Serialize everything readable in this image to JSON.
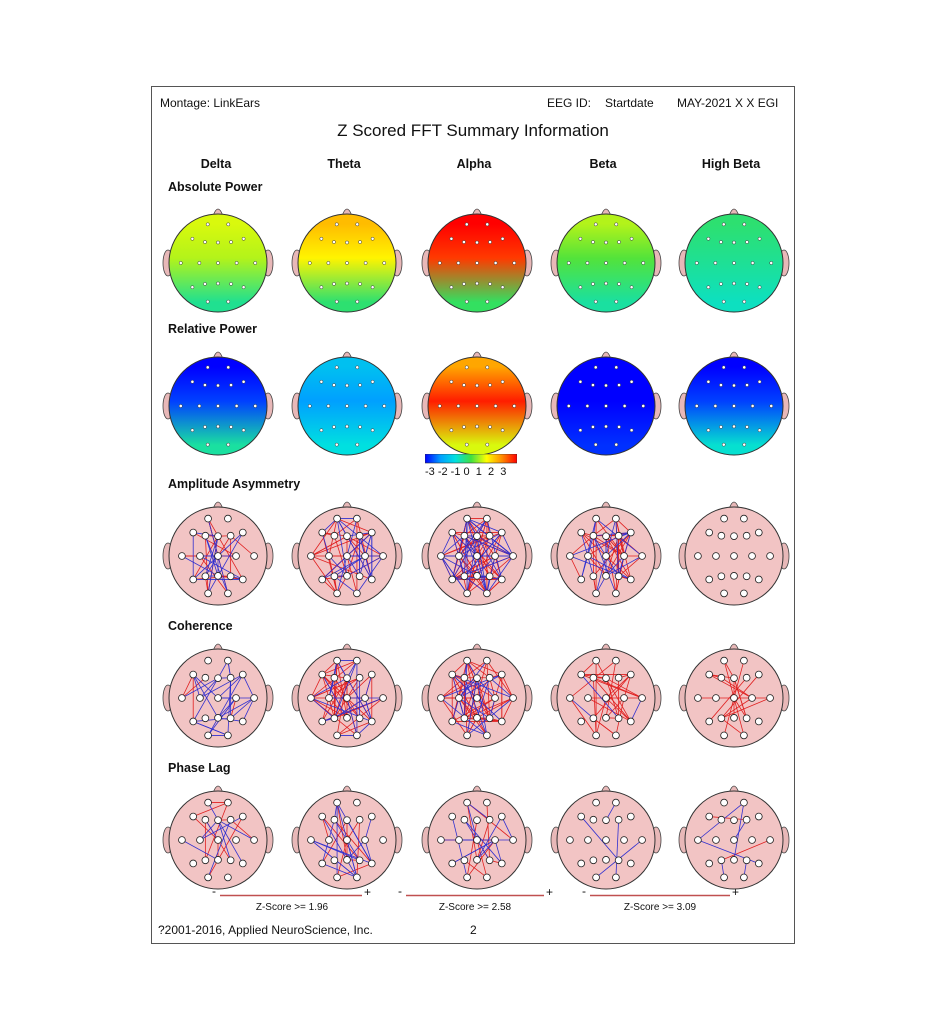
{
  "header": {
    "montage": "Montage:  LinkEars",
    "eeg_id_label": "EEG ID:",
    "startdate": "Startdate",
    "date": "MAY-2021 X X EGI"
  },
  "title": "Z Scored FFT Summary Information",
  "bands": [
    "Delta",
    "Theta",
    "Alpha",
    "Beta",
    "High Beta"
  ],
  "sections": {
    "absolute_power": "Absolute Power",
    "relative_power": "Relative Power",
    "amplitude_asymmetry": "Amplitude Asymmetry",
    "coherence": "Coherence",
    "phase_lag": "Phase Lag"
  },
  "colorbar": {
    "ticks": "-3 -2 -1 0  1  2  3",
    "colors": [
      "#0000ff",
      "#00a0ff",
      "#00e0e0",
      "#40e040",
      "#ffff00",
      "#ff9000",
      "#ff0000"
    ]
  },
  "zscore": {
    "minus": "-",
    "plus": "+",
    "thresholds": [
      "Z-Score >= 1.96",
      "Z-Score >= 2.58",
      "Z-Score >= 3.09"
    ]
  },
  "footer": {
    "copyright": "?2001-2016, Applied NeuroScience, Inc.",
    "page_number": "2"
  },
  "maps": {
    "absolute_power": [
      {
        "band": "Delta",
        "front": 0.8,
        "middle": 0.6,
        "back": -0.5
      },
      {
        "band": "Theta",
        "front": 1.6,
        "middle": 1.1,
        "back": -0.3
      },
      {
        "band": "Alpha",
        "front": 3.0,
        "middle": 2.6,
        "back": -0.2
      },
      {
        "band": "Beta",
        "front": 0.6,
        "middle": 0.1,
        "back": -0.6
      },
      {
        "band": "High Beta",
        "front": -0.3,
        "middle": -0.5,
        "back": -0.8
      }
    ],
    "relative_power": [
      {
        "band": "Delta",
        "front": -3.0,
        "middle": -2.6,
        "back": -0.6
      },
      {
        "band": "Theta",
        "front": -1.5,
        "middle": -2.0,
        "back": -1.0
      },
      {
        "band": "Alpha",
        "front": 1.8,
        "middle": 2.8,
        "back": 0.8
      },
      {
        "band": "Beta",
        "front": -3.0,
        "middle": -3.0,
        "back": -2.7
      },
      {
        "band": "High Beta",
        "front": -3.0,
        "middle": -2.6,
        "back": -0.9
      }
    ]
  },
  "connectivity": {
    "amplitude_asymmetry": [
      {
        "band": "Delta",
        "red": 24,
        "blue": 20
      },
      {
        "band": "Theta",
        "red": 40,
        "blue": 30
      },
      {
        "band": "Alpha",
        "red": 70,
        "blue": 50
      },
      {
        "band": "Beta",
        "red": 40,
        "blue": 25
      },
      {
        "band": "High Beta",
        "red": 0,
        "blue": 0
      }
    ],
    "coherence": [
      {
        "band": "Delta",
        "red": 4,
        "blue": 30
      },
      {
        "band": "Theta",
        "red": 45,
        "blue": 25
      },
      {
        "band": "Alpha",
        "red": 60,
        "blue": 25
      },
      {
        "band": "Beta",
        "red": 30,
        "blue": 4
      },
      {
        "band": "High Beta",
        "red": 18,
        "blue": 0
      }
    ],
    "phase_lag": [
      {
        "band": "Delta",
        "red": 10,
        "blue": 8
      },
      {
        "band": "Theta",
        "red": 12,
        "blue": 18
      },
      {
        "band": "Alpha",
        "red": 12,
        "blue": 14
      },
      {
        "band": "Beta",
        "red": 0,
        "blue": 5
      },
      {
        "band": "High Beta",
        "red": 2,
        "blue": 7
      }
    ]
  }
}
